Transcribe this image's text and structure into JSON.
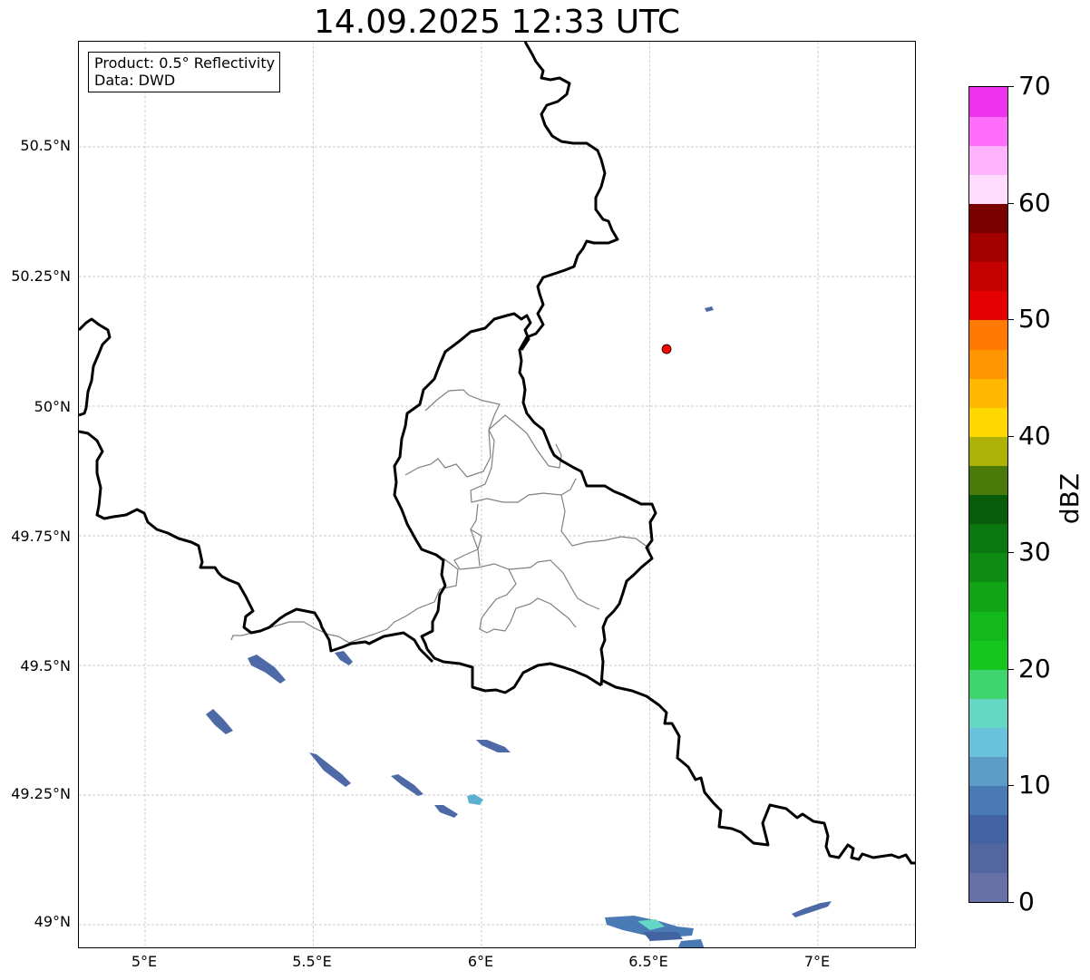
{
  "title": "14.09.2025 12:33 UTC",
  "info_box": {
    "product": "Product: 0.5° Reflectivity",
    "data_source": "Data: DWD"
  },
  "map": {
    "lat_labels": [
      "50.5°N",
      "50.25°N",
      "50°N",
      "49.75°N",
      "49.5°N",
      "49.25°N",
      "49°N"
    ],
    "lon_labels": [
      "5°E",
      "5.5°E",
      "6°E",
      "6.5°E",
      "7°E"
    ],
    "gridlines": true,
    "marker": {
      "lon": 6.55,
      "lat": 50.11,
      "color": "#ff0000"
    },
    "colors": {
      "national_border": "#000000",
      "admin_border": "#808080",
      "grid": "#bbbbbb"
    }
  },
  "colorbar": {
    "label": "dBZ",
    "tick_labels": [
      "0",
      "10",
      "20",
      "30",
      "40",
      "50",
      "60",
      "70"
    ],
    "min": 0,
    "max": 70,
    "step": 2.5,
    "colors": [
      "#6771a8",
      "#52679f",
      "#4362a1",
      "#4a7ab3",
      "#5c9dc8",
      "#69c1dc",
      "#64d7c5",
      "#3ed56f",
      "#14c61e",
      "#13b81b",
      "#11a516",
      "#0e8b12",
      "#0b7710",
      "#085d0b",
      "#4a7a0a",
      "#afb206",
      "#ffd800",
      "#ffb800",
      "#ff9500",
      "#ff7a00",
      "#e40000",
      "#c40000",
      "#a30000",
      "#7a0000",
      "#ffdcfe",
      "#ffb2fd",
      "#ff6efb",
      "#ee33ee"
    ]
  }
}
